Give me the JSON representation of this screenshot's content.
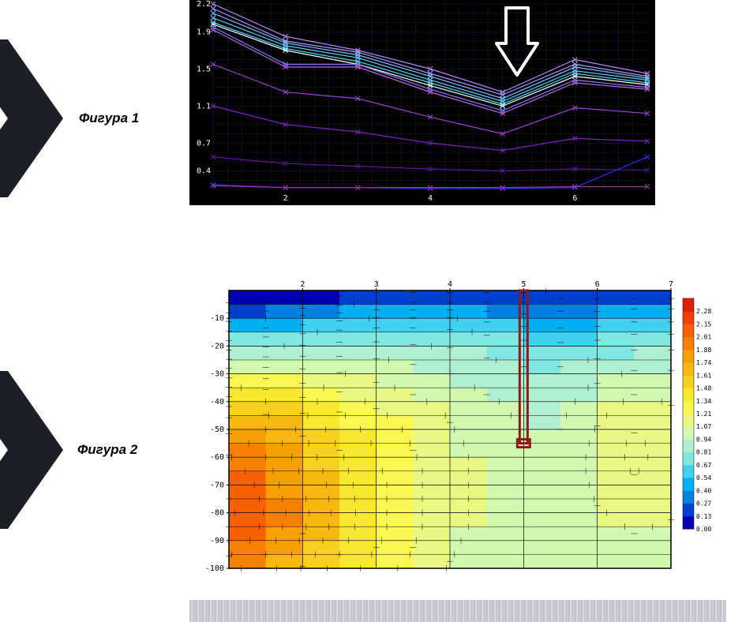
{
  "figure1": {
    "label": "Фигура 1",
    "type": "line",
    "background_color": "#000000",
    "grid_color": "#1a1a3a",
    "axis_label_color": "#ffffff",
    "label_fontsize": 10,
    "xlim": [
      1,
      7
    ],
    "ylim": [
      0.2,
      2.2
    ],
    "x_ticks": [
      2,
      4,
      6
    ],
    "y_ticks": [
      0.4,
      0.7,
      1.1,
      1.5,
      1.9,
      2.2
    ],
    "x_positions": [
      1,
      2,
      3,
      4,
      5,
      6,
      7
    ],
    "arrow": {
      "x": 5.2,
      "color": "#ffffff"
    },
    "series": [
      {
        "color": "#c080ff",
        "y": [
          2.2,
          1.85,
          1.7,
          1.5,
          1.25,
          1.6,
          1.45
        ],
        "marker": "x"
      },
      {
        "color": "#a0a0ff",
        "y": [
          2.15,
          1.8,
          1.68,
          1.45,
          1.22,
          1.55,
          1.42
        ],
        "marker": "x"
      },
      {
        "color": "#80c0ff",
        "y": [
          2.1,
          1.78,
          1.65,
          1.42,
          1.18,
          1.52,
          1.4
        ],
        "marker": "x"
      },
      {
        "color": "#60d0ff",
        "y": [
          2.05,
          1.75,
          1.62,
          1.38,
          1.15,
          1.48,
          1.38
        ],
        "marker": "x"
      },
      {
        "color": "#40e0ff",
        "y": [
          2.0,
          1.72,
          1.58,
          1.35,
          1.12,
          1.45,
          1.35
        ],
        "marker": "x"
      },
      {
        "color": "#ffffff",
        "y": [
          1.98,
          1.7,
          1.55,
          1.32,
          1.1,
          1.42,
          1.33
        ],
        "marker": "x"
      },
      {
        "color": "#8080ff",
        "y": [
          1.95,
          1.55,
          1.55,
          1.28,
          1.05,
          1.38,
          1.3
        ],
        "marker": "x"
      },
      {
        "color": "#c060e0",
        "y": [
          1.92,
          1.52,
          1.52,
          1.25,
          1.02,
          1.35,
          1.28
        ],
        "marker": "x"
      },
      {
        "color": "#a040d0",
        "y": [
          1.55,
          1.25,
          1.18,
          0.98,
          0.8,
          1.08,
          1.02
        ],
        "marker": "x"
      },
      {
        "color": "#8020c0",
        "y": [
          1.1,
          0.9,
          0.82,
          0.7,
          0.62,
          0.75,
          0.72
        ],
        "marker": "x"
      },
      {
        "color": "#6010a0",
        "y": [
          0.55,
          0.48,
          0.45,
          0.42,
          0.4,
          0.42,
          0.41
        ],
        "marker": "x"
      },
      {
        "color": "#3030ff",
        "y": [
          0.25,
          0.22,
          0.22,
          0.21,
          0.21,
          0.22,
          0.55
        ],
        "marker": "x"
      },
      {
        "color": "#a030a0",
        "y": [
          0.24,
          0.22,
          0.22,
          0.22,
          0.22,
          0.23,
          0.23
        ],
        "marker": "x"
      }
    ]
  },
  "figure2": {
    "label": "Фигура 2",
    "type": "heatmap",
    "background_color": "#ffffff",
    "grid_color": "#000000",
    "axis_label_color": "#000000",
    "label_fontsize": 10,
    "xlim": [
      1,
      7
    ],
    "ylim": [
      -100,
      0
    ],
    "x_ticks": [
      2,
      3,
      4,
      5,
      6,
      7
    ],
    "y_ticks": [
      -10,
      -20,
      -30,
      -40,
      -50,
      -60,
      -70,
      -80,
      -90,
      -100
    ],
    "marker_rect": {
      "x": 5,
      "y_top": 0,
      "y_bot": -55,
      "color": "#8b1a1a",
      "line_width": 3
    },
    "colorbar": {
      "levels": [
        0.0,
        0.13,
        0.27,
        0.4,
        0.54,
        0.67,
        0.81,
        0.94,
        1.07,
        1.21,
        1.34,
        1.48,
        1.61,
        1.74,
        1.88,
        2.01,
        2.15,
        2.28
      ],
      "colors": [
        "#0000b0",
        "#0040d0",
        "#0080e0",
        "#00b0f0",
        "#40d0f0",
        "#80e8e0",
        "#b0f0d0",
        "#d0f8b0",
        "#e8f880",
        "#f8f850",
        "#f8e830",
        "#f8d020",
        "#f8b810",
        "#f8a000",
        "#f88000",
        "#f86000",
        "#f04000",
        "#e02000"
      ]
    },
    "x_cols": [
      1.0,
      1.5,
      2.0,
      2.5,
      3.0,
      3.5,
      4.0,
      4.5,
      5.0,
      5.5,
      6.0,
      6.5,
      7.0
    ],
    "y_rows": [
      0,
      -5,
      -10,
      -15,
      -20,
      -25,
      -30,
      -35,
      -40,
      -45,
      -50,
      -55,
      -60,
      -65,
      -70,
      -75,
      -80,
      -85,
      -90,
      -95,
      -100
    ],
    "grid_values": [
      [
        0.0,
        0.0,
        0.0,
        0.05,
        0.1,
        0.1,
        0.1,
        0.1,
        0.1,
        0.15,
        0.15,
        0.15,
        0.15
      ],
      [
        0.15,
        0.15,
        0.2,
        0.25,
        0.3,
        0.3,
        0.3,
        0.3,
        0.3,
        0.35,
        0.35,
        0.35,
        0.35
      ],
      [
        0.35,
        0.4,
        0.45,
        0.5,
        0.55,
        0.55,
        0.55,
        0.5,
        0.45,
        0.45,
        0.45,
        0.5,
        0.5
      ],
      [
        0.55,
        0.6,
        0.65,
        0.7,
        0.72,
        0.72,
        0.7,
        0.65,
        0.6,
        0.58,
        0.6,
        0.65,
        0.65
      ],
      [
        0.75,
        0.8,
        0.82,
        0.85,
        0.85,
        0.82,
        0.8,
        0.75,
        0.72,
        0.7,
        0.72,
        0.78,
        0.78
      ],
      [
        0.95,
        0.98,
        0.98,
        0.97,
        0.95,
        0.92,
        0.88,
        0.82,
        0.78,
        0.78,
        0.82,
        0.88,
        0.88
      ],
      [
        1.15,
        1.15,
        1.12,
        1.08,
        1.02,
        0.98,
        0.94,
        0.88,
        0.84,
        0.84,
        0.9,
        0.96,
        0.96
      ],
      [
        1.35,
        1.32,
        1.25,
        1.18,
        1.1,
        1.04,
        0.98,
        0.92,
        0.88,
        0.88,
        0.96,
        1.04,
        1.02
      ],
      [
        1.55,
        1.48,
        1.38,
        1.28,
        1.18,
        1.1,
        1.02,
        0.96,
        0.9,
        0.9,
        1.0,
        1.1,
        1.06
      ],
      [
        1.72,
        1.62,
        1.5,
        1.36,
        1.24,
        1.14,
        1.06,
        0.98,
        0.92,
        0.92,
        1.04,
        1.16,
        1.1
      ],
      [
        1.85,
        1.74,
        1.58,
        1.42,
        1.28,
        1.18,
        1.08,
        1.0,
        0.94,
        0.94,
        1.08,
        1.2,
        1.12
      ],
      [
        1.95,
        1.82,
        1.64,
        1.46,
        1.32,
        1.2,
        1.1,
        1.02,
        0.96,
        0.96,
        1.1,
        1.24,
        1.14
      ],
      [
        2.02,
        1.88,
        1.68,
        1.5,
        1.34,
        1.22,
        1.12,
        1.02,
        0.96,
        0.96,
        1.12,
        1.24,
        1.16
      ],
      [
        2.08,
        1.92,
        1.72,
        1.52,
        1.36,
        1.24,
        1.12,
        1.02,
        0.96,
        0.96,
        1.12,
        1.22,
        1.14
      ],
      [
        2.12,
        1.96,
        1.74,
        1.54,
        1.38,
        1.24,
        1.12,
        1.02,
        0.96,
        0.96,
        1.1,
        1.18,
        1.12
      ],
      [
        2.15,
        1.98,
        1.76,
        1.55,
        1.38,
        1.24,
        1.12,
        1.02,
        0.96,
        0.96,
        1.08,
        1.14,
        1.1
      ],
      [
        2.18,
        2.0,
        1.78,
        1.56,
        1.38,
        1.24,
        1.12,
        1.02,
        0.96,
        0.96,
        1.06,
        1.1,
        1.08
      ],
      [
        2.15,
        1.98,
        1.76,
        1.55,
        1.38,
        1.24,
        1.12,
        1.02,
        0.96,
        0.96,
        1.04,
        1.08,
        1.06
      ],
      [
        2.1,
        1.94,
        1.72,
        1.52,
        1.36,
        1.22,
        1.1,
        1.0,
        0.96,
        0.96,
        1.02,
        1.06,
        1.04
      ],
      [
        2.02,
        1.88,
        1.68,
        1.48,
        1.32,
        1.2,
        1.08,
        1.0,
        0.96,
        0.96,
        1.0,
        1.04,
        1.02
      ],
      [
        1.92,
        1.8,
        1.6,
        1.42,
        1.28,
        1.16,
        1.06,
        0.98,
        0.94,
        0.94,
        0.98,
        1.02,
        1.0
      ]
    ]
  },
  "chevron_fill": "#1c1f26",
  "noise_strip_visible": true
}
